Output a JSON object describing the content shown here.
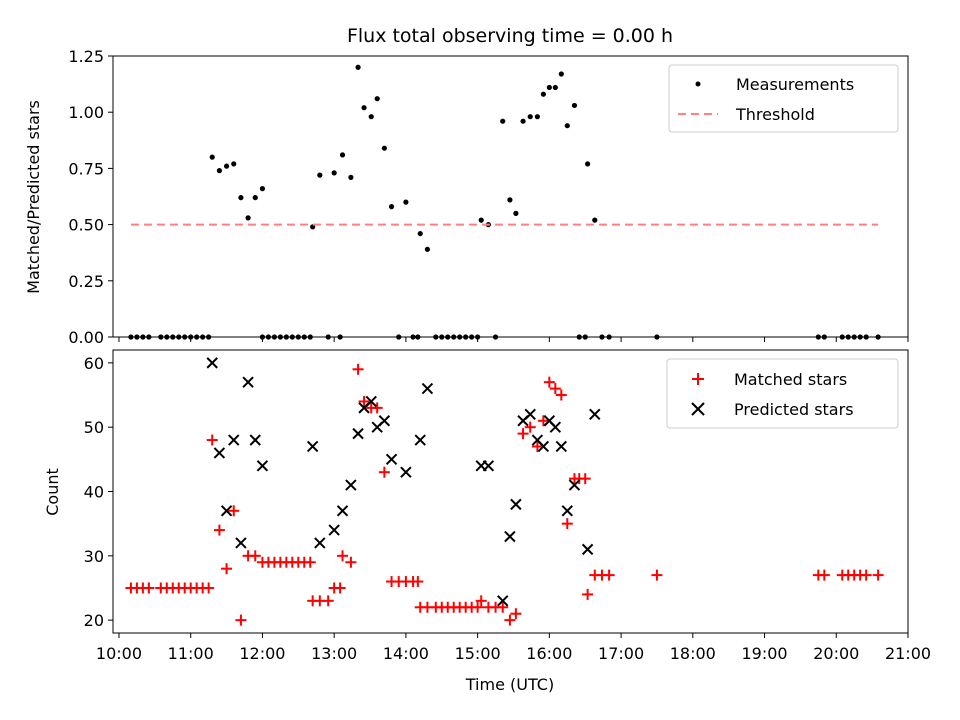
{
  "chart_data": [
    {
      "type": "scatter",
      "title": "Flux total observing time = 0.00 h",
      "xlabel": "",
      "ylabel": "Matched/Predicted stars",
      "xlim": [
        "09:55",
        "21:00"
      ],
      "ylim": [
        0,
        1.25
      ],
      "yticks": [
        "0.00",
        "0.25",
        "0.50",
        "0.75",
        "1.00",
        "1.25"
      ],
      "legend_position": "top-right",
      "series": [
        {
          "name": "Measurements",
          "marker": "dot",
          "color": "#000000",
          "points": [
            [
              "10:10",
              0
            ],
            [
              "10:15",
              0
            ],
            [
              "10:20",
              0
            ],
            [
              "10:25",
              0
            ],
            [
              "10:35",
              0
            ],
            [
              "10:40",
              0
            ],
            [
              "10:45",
              0
            ],
            [
              "10:50",
              0
            ],
            [
              "10:55",
              0
            ],
            [
              "11:00",
              0
            ],
            [
              "11:05",
              0
            ],
            [
              "11:10",
              0
            ],
            [
              "11:15",
              0
            ],
            [
              "11:18",
              0.8
            ],
            [
              "11:24",
              0.74
            ],
            [
              "11:30",
              0.76
            ],
            [
              "11:36",
              0.77
            ],
            [
              "11:42",
              0.62
            ],
            [
              "11:48",
              0.53
            ],
            [
              "11:54",
              0.62
            ],
            [
              "12:00",
              0.66
            ],
            [
              "12:00",
              0
            ],
            [
              "12:05",
              0
            ],
            [
              "12:10",
              0
            ],
            [
              "12:15",
              0
            ],
            [
              "12:20",
              0
            ],
            [
              "12:25",
              0
            ],
            [
              "12:30",
              0
            ],
            [
              "12:35",
              0
            ],
            [
              "12:40",
              0
            ],
            [
              "12:42",
              0.49
            ],
            [
              "12:48",
              0.72
            ],
            [
              "12:55",
              0
            ],
            [
              "13:00",
              0.73
            ],
            [
              "13:05",
              0
            ],
            [
              "13:07",
              0.81
            ],
            [
              "13:14",
              0.71
            ],
            [
              "13:20",
              1.2
            ],
            [
              "13:25",
              1.02
            ],
            [
              "13:31",
              0.98
            ],
            [
              "13:36",
              1.06
            ],
            [
              "13:42",
              0.84
            ],
            [
              "13:48",
              0.58
            ],
            [
              "13:54",
              0
            ],
            [
              "14:00",
              0.6
            ],
            [
              "14:06",
              0
            ],
            [
              "14:10",
              0
            ],
            [
              "14:12",
              0.46
            ],
            [
              "14:18",
              0.39
            ],
            [
              "14:25",
              0
            ],
            [
              "14:30",
              0
            ],
            [
              "14:35",
              0
            ],
            [
              "14:40",
              0
            ],
            [
              "14:45",
              0
            ],
            [
              "14:50",
              0
            ],
            [
              "14:55",
              0
            ],
            [
              "15:00",
              0
            ],
            [
              "15:03",
              0.52
            ],
            [
              "15:09",
              0.5
            ],
            [
              "15:15",
              0
            ],
            [
              "15:21",
              0.96
            ],
            [
              "15:27",
              0.61
            ],
            [
              "15:32",
              0.55
            ],
            [
              "15:38",
              0.96
            ],
            [
              "15:44",
              0.98
            ],
            [
              "15:50",
              0.98
            ],
            [
              "15:55",
              1.08
            ],
            [
              "16:00",
              1.11
            ],
            [
              "16:05",
              1.11
            ],
            [
              "16:10",
              1.17
            ],
            [
              "16:15",
              0.94
            ],
            [
              "16:21",
              1.03
            ],
            [
              "16:25",
              0
            ],
            [
              "16:30",
              0
            ],
            [
              "16:32",
              0.77
            ],
            [
              "16:38",
              0.52
            ],
            [
              "16:44",
              0
            ],
            [
              "16:50",
              0
            ],
            [
              "17:30",
              0
            ],
            [
              "19:45",
              0
            ],
            [
              "19:50",
              0
            ],
            [
              "20:05",
              0
            ],
            [
              "20:10",
              0
            ],
            [
              "20:15",
              0
            ],
            [
              "20:20",
              0
            ],
            [
              "20:25",
              0
            ],
            [
              "20:35",
              0
            ]
          ]
        },
        {
          "name": "Threshold",
          "marker": "dashed-line",
          "color": "#ff8080",
          "points": [
            [
              "10:10",
              0.5
            ],
            [
              "20:35",
              0.5
            ]
          ]
        }
      ]
    },
    {
      "type": "scatter",
      "title": "",
      "xlabel": "Time (UTC)",
      "ylabel": "Count",
      "xlim": [
        "09:55",
        "21:00"
      ],
      "ylim": [
        18,
        62
      ],
      "yticks": [
        "20",
        "30",
        "40",
        "50",
        "60"
      ],
      "xticks": [
        "10:00",
        "11:00",
        "12:00",
        "13:00",
        "14:00",
        "15:00",
        "16:00",
        "17:00",
        "18:00",
        "19:00",
        "20:00",
        "21:00"
      ],
      "legend_position": "top-right",
      "series": [
        {
          "name": "Matched stars",
          "marker": "plus",
          "color": "#ff0000",
          "points": [
            [
              "10:10",
              25
            ],
            [
              "10:15",
              25
            ],
            [
              "10:20",
              25
            ],
            [
              "10:25",
              25
            ],
            [
              "10:35",
              25
            ],
            [
              "10:40",
              25
            ],
            [
              "10:45",
              25
            ],
            [
              "10:50",
              25
            ],
            [
              "10:55",
              25
            ],
            [
              "11:00",
              25
            ],
            [
              "11:05",
              25
            ],
            [
              "11:10",
              25
            ],
            [
              "11:15",
              25
            ],
            [
              "11:18",
              48
            ],
            [
              "11:24",
              34
            ],
            [
              "11:30",
              28
            ],
            [
              "11:36",
              37
            ],
            [
              "11:42",
              20
            ],
            [
              "11:48",
              30
            ],
            [
              "11:54",
              30
            ],
            [
              "12:00",
              29
            ],
            [
              "12:05",
              29
            ],
            [
              "12:10",
              29
            ],
            [
              "12:15",
              29
            ],
            [
              "12:20",
              29
            ],
            [
              "12:25",
              29
            ],
            [
              "12:30",
              29
            ],
            [
              "12:35",
              29
            ],
            [
              "12:40",
              29
            ],
            [
              "12:42",
              23
            ],
            [
              "12:48",
              23
            ],
            [
              "12:55",
              23
            ],
            [
              "13:00",
              25
            ],
            [
              "13:05",
              25
            ],
            [
              "13:07",
              30
            ],
            [
              "13:14",
              29
            ],
            [
              "13:20",
              59
            ],
            [
              "13:25",
              54
            ],
            [
              "13:31",
              53
            ],
            [
              "13:36",
              53
            ],
            [
              "13:42",
              43
            ],
            [
              "13:48",
              26
            ],
            [
              "13:54",
              26
            ],
            [
              "14:00",
              26
            ],
            [
              "14:06",
              26
            ],
            [
              "14:10",
              26
            ],
            [
              "14:12",
              22
            ],
            [
              "14:18",
              22
            ],
            [
              "14:25",
              22
            ],
            [
              "14:30",
              22
            ],
            [
              "14:35",
              22
            ],
            [
              "14:40",
              22
            ],
            [
              "14:45",
              22
            ],
            [
              "14:50",
              22
            ],
            [
              "14:55",
              22
            ],
            [
              "15:00",
              22
            ],
            [
              "15:03",
              23
            ],
            [
              "15:09",
              22
            ],
            [
              "15:15",
              22
            ],
            [
              "15:21",
              22
            ],
            [
              "15:27",
              20
            ],
            [
              "15:32",
              21
            ],
            [
              "15:38",
              49
            ],
            [
              "15:44",
              50
            ],
            [
              "15:50",
              47
            ],
            [
              "15:55",
              51
            ],
            [
              "16:00",
              57
            ],
            [
              "16:05",
              56
            ],
            [
              "16:10",
              55
            ],
            [
              "16:15",
              35
            ],
            [
              "16:21",
              42
            ],
            [
              "16:25",
              42
            ],
            [
              "16:30",
              42
            ],
            [
              "16:32",
              24
            ],
            [
              "16:38",
              27
            ],
            [
              "16:44",
              27
            ],
            [
              "16:50",
              27
            ],
            [
              "17:30",
              27
            ],
            [
              "19:45",
              27
            ],
            [
              "19:50",
              27
            ],
            [
              "20:05",
              27
            ],
            [
              "20:10",
              27
            ],
            [
              "20:15",
              27
            ],
            [
              "20:20",
              27
            ],
            [
              "20:25",
              27
            ],
            [
              "20:35",
              27
            ]
          ]
        },
        {
          "name": "Predicted stars",
          "marker": "x",
          "color": "#000000",
          "points": [
            [
              "11:18",
              60
            ],
            [
              "11:24",
              46
            ],
            [
              "11:30",
              37
            ],
            [
              "11:36",
              48
            ],
            [
              "11:42",
              32
            ],
            [
              "11:48",
              57
            ],
            [
              "11:54",
              48
            ],
            [
              "12:00",
              44
            ],
            [
              "12:42",
              47
            ],
            [
              "12:48",
              32
            ],
            [
              "13:00",
              34
            ],
            [
              "13:07",
              37
            ],
            [
              "13:14",
              41
            ],
            [
              "13:20",
              49
            ],
            [
              "13:25",
              53
            ],
            [
              "13:31",
              54
            ],
            [
              "13:36",
              50
            ],
            [
              "13:42",
              51
            ],
            [
              "13:48",
              45
            ],
            [
              "14:00",
              43
            ],
            [
              "14:12",
              48
            ],
            [
              "14:18",
              56
            ],
            [
              "15:03",
              44
            ],
            [
              "15:09",
              44
            ],
            [
              "15:21",
              23
            ],
            [
              "15:27",
              33
            ],
            [
              "15:32",
              38
            ],
            [
              "15:38",
              51
            ],
            [
              "15:44",
              52
            ],
            [
              "15:50",
              48
            ],
            [
              "15:55",
              47
            ],
            [
              "16:00",
              51
            ],
            [
              "16:05",
              50
            ],
            [
              "16:10",
              47
            ],
            [
              "16:15",
              37
            ],
            [
              "16:21",
              41
            ],
            [
              "16:32",
              31
            ],
            [
              "16:38",
              52
            ]
          ]
        }
      ]
    }
  ]
}
